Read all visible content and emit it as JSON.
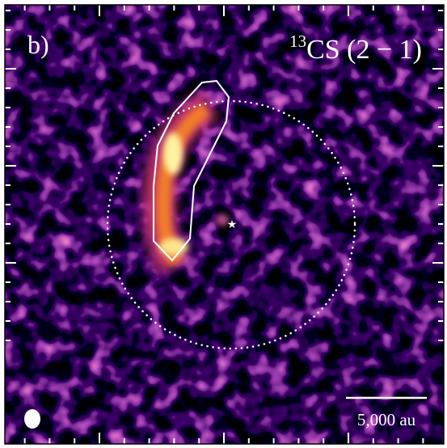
{
  "panel_label": "b)",
  "title": {
    "superscript": "13",
    "text": "CS (2 − 1)"
  },
  "scale_bar": {
    "label": "5,000 au"
  }
}
